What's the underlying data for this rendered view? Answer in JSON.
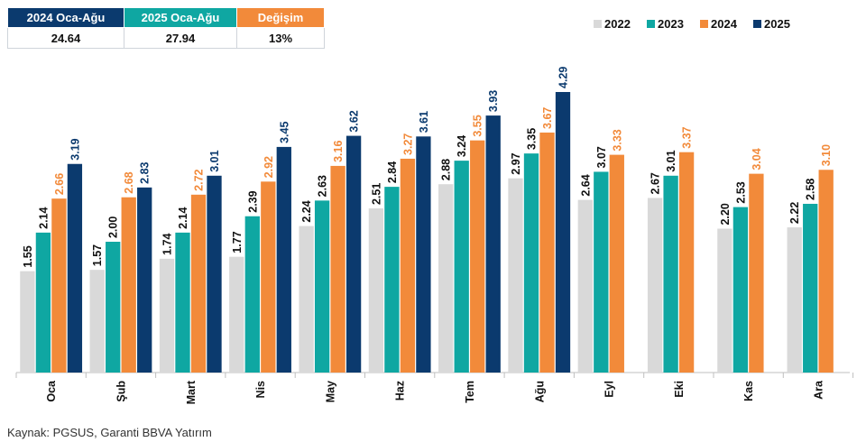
{
  "summary_table": {
    "headers": [
      "2024 Oca-Ağu",
      "2025 Oca-Ağu",
      "Değişim"
    ],
    "values": [
      "24.64",
      "27.94",
      "13%"
    ],
    "header_colors": [
      "#0b3a6e",
      "#0fa7a2",
      "#f28a3a"
    ]
  },
  "source": "Kaynak: PGSUS, Garanti BBVA Yatırım",
  "chart_data": {
    "type": "bar",
    "categories": [
      "Oca",
      "Şub",
      "Mart",
      "Nis",
      "May",
      "Haz",
      "Tem",
      "Ağu",
      "Eyl",
      "Eki",
      "Kas",
      "Ara"
    ],
    "series": [
      {
        "name": "2022",
        "color": "#d9d9d9",
        "label_color": "#111111",
        "values": [
          1.55,
          1.57,
          1.74,
          1.77,
          2.24,
          2.51,
          2.88,
          2.97,
          2.64,
          2.67,
          2.2,
          2.22
        ]
      },
      {
        "name": "2023",
        "color": "#0fa7a2",
        "label_color": "#111111",
        "values": [
          2.14,
          2.0,
          2.14,
          2.39,
          2.63,
          2.84,
          3.24,
          3.35,
          3.07,
          3.01,
          2.53,
          2.58
        ]
      },
      {
        "name": "2024",
        "color": "#f28a3a",
        "label_color": "#f28a3a",
        "values": [
          2.66,
          2.68,
          2.72,
          2.92,
          3.16,
          3.27,
          3.55,
          3.67,
          3.33,
          3.37,
          3.04,
          3.1
        ]
      },
      {
        "name": "2025",
        "color": "#0b3a6e",
        "label_color": "#0b3a6e",
        "values": [
          3.19,
          2.83,
          3.01,
          3.45,
          3.62,
          3.61,
          3.93,
          4.29,
          null,
          null,
          null,
          null
        ]
      }
    ],
    "ylim": [
      0,
      4.29
    ],
    "grid": false,
    "legend_position": "top-right",
    "title": "",
    "xlabel": "",
    "ylabel": ""
  }
}
